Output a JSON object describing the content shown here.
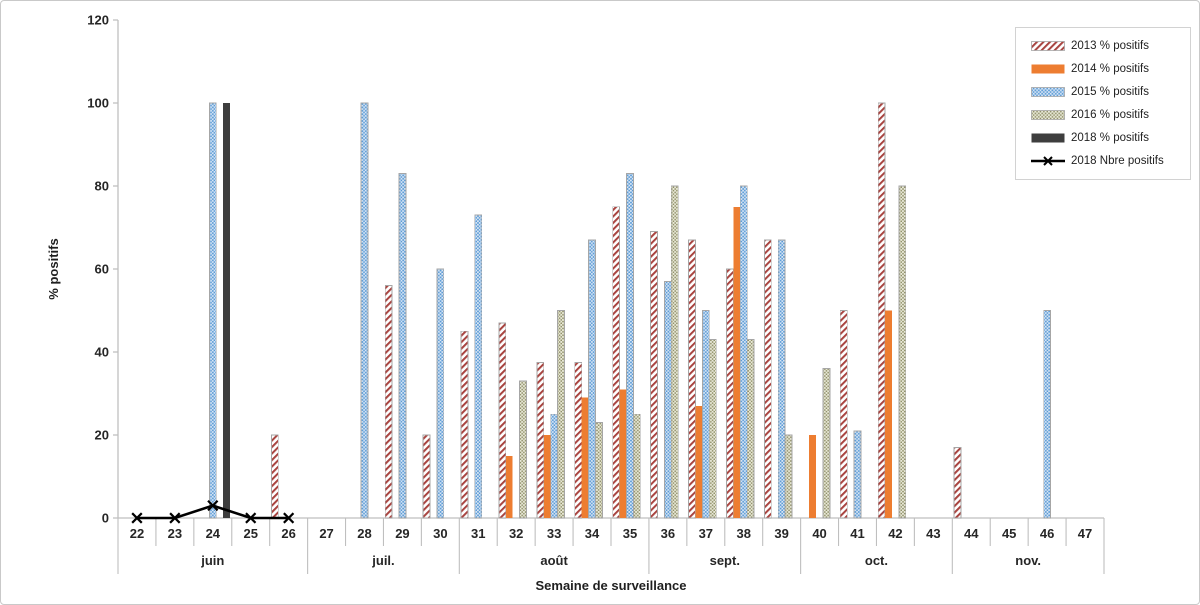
{
  "chart_data": {
    "type": "bar",
    "title": "",
    "xlabel": "Semaine de surveillance",
    "ylabel": "% positifs",
    "ylim": [
      0,
      120
    ],
    "yticks": [
      0,
      20,
      40,
      60,
      80,
      100,
      120
    ],
    "grid": false,
    "legend_position": "top-right",
    "categories": [
      "22",
      "23",
      "24",
      "25",
      "26",
      "27",
      "28",
      "29",
      "30",
      "31",
      "32",
      "33",
      "34",
      "35",
      "36",
      "37",
      "38",
      "39",
      "40",
      "41",
      "42",
      "43",
      "44",
      "45",
      "46",
      "47"
    ],
    "month_groups": [
      {
        "label": "juin",
        "weeks": 5
      },
      {
        "label": "juil.",
        "weeks": 4
      },
      {
        "label": "août",
        "weeks": 5
      },
      {
        "label": "sept.",
        "weeks": 4
      },
      {
        "label": "oct.",
        "weeks": 4
      },
      {
        "label": "nov.",
        "weeks": 4
      }
    ],
    "series": [
      {
        "name": "2013 % positifs",
        "kind": "bar",
        "key": "s2013",
        "values": [
          null,
          null,
          null,
          null,
          20,
          null,
          null,
          56,
          20,
          45,
          47,
          37.5,
          37.5,
          75,
          69,
          67,
          60,
          67,
          null,
          50,
          100,
          null,
          17,
          null,
          null,
          null
        ]
      },
      {
        "name": "2014 % positifs",
        "kind": "bar",
        "key": "s2014",
        "values": [
          null,
          null,
          null,
          null,
          null,
          null,
          null,
          null,
          null,
          null,
          15,
          20,
          29,
          31,
          null,
          27,
          75,
          null,
          20,
          null,
          50,
          null,
          null,
          null,
          null,
          null
        ]
      },
      {
        "name": "2015 % positifs",
        "kind": "bar",
        "key": "s2015",
        "values": [
          null,
          null,
          100,
          null,
          null,
          null,
          100,
          83,
          60,
          73,
          null,
          25,
          67,
          83,
          57,
          50,
          80,
          67,
          null,
          21,
          null,
          null,
          null,
          null,
          50,
          null
        ]
      },
      {
        "name": "2016 % positifs",
        "kind": "bar",
        "key": "s2016",
        "values": [
          null,
          null,
          null,
          null,
          null,
          null,
          null,
          null,
          null,
          null,
          33,
          50,
          23,
          25,
          80,
          43,
          43,
          20,
          36,
          null,
          80,
          null,
          null,
          null,
          null,
          null
        ]
      },
      {
        "name": "2018 % positifs",
        "kind": "bar",
        "key": "s2018",
        "values": [
          null,
          null,
          100,
          null,
          null,
          null,
          null,
          null,
          null,
          null,
          null,
          null,
          null,
          null,
          null,
          null,
          null,
          null,
          null,
          null,
          null,
          null,
          null,
          null,
          null,
          null
        ]
      },
      {
        "name": "2018 Nbre positifs",
        "kind": "line",
        "key": "line2018",
        "values": [
          0,
          0,
          3,
          0,
          0,
          null,
          null,
          null,
          null,
          null,
          null,
          null,
          null,
          null,
          null,
          null,
          null,
          null,
          null,
          null,
          null,
          null,
          null,
          null,
          null,
          null
        ]
      }
    ]
  },
  "colors": {
    "s2013": "#A8433F",
    "s2014": "#ED7D31",
    "s2015": "#5B9BD5",
    "s2015_bg": "#D9E6F5",
    "s2016": "#8F8F68",
    "s2016_bg": "#EAEAD9",
    "s2018": "#3E3E3E",
    "line2018": "#000000",
    "axis": "#BFBFBF",
    "pattern_stroke": "#A6A6A6"
  }
}
